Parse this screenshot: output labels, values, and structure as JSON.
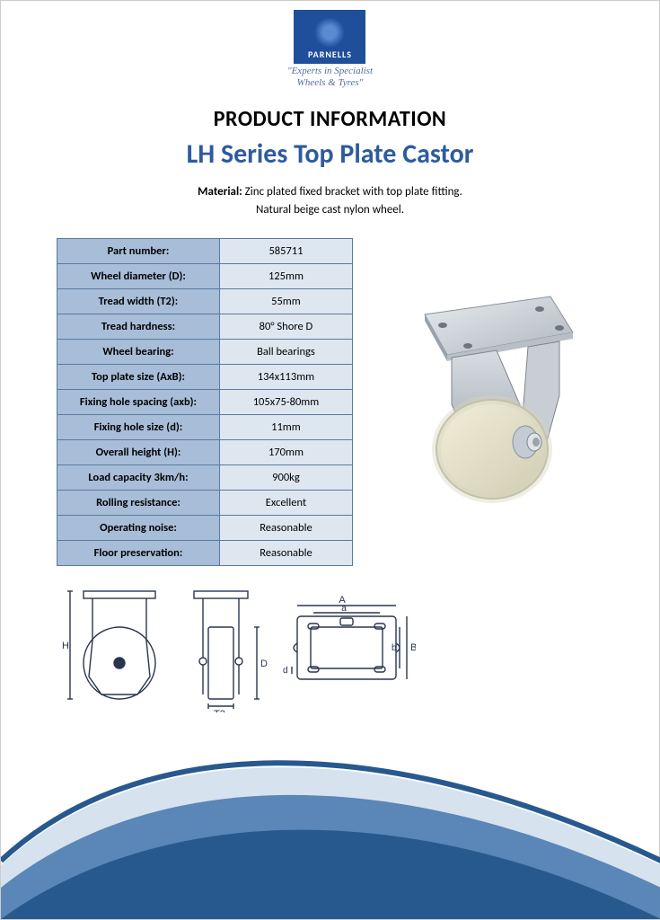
{
  "brand": {
    "name": "PARNELLS",
    "tagline_line1": "\"Experts in Specialist",
    "tagline_line2": "Wheels & Tyres\"",
    "tagline_color": "#4a6fa5",
    "logo_bg": "#1f4e9b"
  },
  "heading": {
    "line1": "PRODUCT INFORMATION",
    "line2": "LH Series Top Plate Castor",
    "line2_color": "#2e5b9e"
  },
  "material": {
    "label": "Material:",
    "line1": "Zinc plated fixed bracket with top plate fitting.",
    "line2": "Natural beige cast nylon wheel."
  },
  "spec_table": {
    "header_bg": "#a7bdd8",
    "value_bg": "#dee6ef",
    "border_color": "#5a7a9e",
    "rows": [
      {
        "label": "Part number:",
        "value": "585711"
      },
      {
        "label": "Wheel diameter (D):",
        "value": "125mm"
      },
      {
        "label": "Tread width (T2):",
        "value": "55mm"
      },
      {
        "label": "Tread hardness:",
        "value": "80° Shore D"
      },
      {
        "label": "Wheel bearing:",
        "value": "Ball bearings"
      },
      {
        "label": "Top plate size (AxB):",
        "value": "134x113mm"
      },
      {
        "label": "Fixing hole spacing (axb):",
        "value": "105x75-80mm"
      },
      {
        "label": "Fixing hole size (d):",
        "value": "11mm"
      },
      {
        "label": "Overall height (H):",
        "value": "170mm"
      },
      {
        "label": "Load capacity 3km/h:",
        "value": "900kg"
      },
      {
        "label": "Rolling resistance:",
        "value": "Excellent"
      },
      {
        "label": "Operating noise:",
        "value": "Reasonable"
      },
      {
        "label": "Floor preservation:",
        "value": "Reasonable"
      }
    ]
  },
  "product_render": {
    "plate_color": "#c4cbd2",
    "plate_highlight": "#e8ecef",
    "bracket_color": "#b0b8c0",
    "wheel_color": "#e9e6cf",
    "wheel_shadow": "#d0cdb5",
    "bolt_color": "#9aa3ac"
  },
  "diagram": {
    "line_color": "#2a3550",
    "dim_labels": {
      "H": "H",
      "D": "D",
      "T2": "T2",
      "A": "A",
      "a": "a",
      "B": "B",
      "b": "b",
      "d": "d"
    }
  },
  "swoosh": {
    "dark": "#27598f",
    "mid": "#5b86b8",
    "light": "#d6e2ee"
  }
}
